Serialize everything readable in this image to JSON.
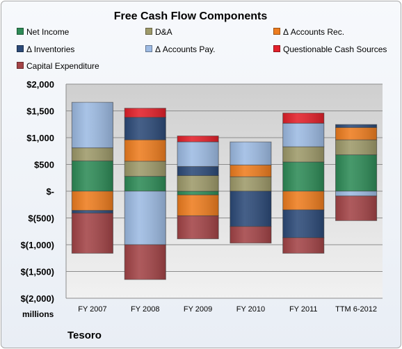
{
  "chart_data": {
    "type": "bar",
    "stacked": true,
    "title": "Free Cash Flow Components",
    "units_label": "millions",
    "categories": [
      "FY 2007",
      "FY 2008",
      "FY 2009",
      "FY 2010",
      "FY 2011",
      "TTM 6-2012"
    ],
    "y_ticks": [
      "$2,000",
      "$1,500",
      "$1,000",
      "$500",
      "$-",
      "$(500)",
      "$(1,000)",
      "$(1,500)",
      "$(2,000)"
    ],
    "ylim": [
      -2000,
      2000
    ],
    "grid": true,
    "legend_position": "top",
    "series": [
      {
        "name": "Net Income",
        "color": "#2e8b57",
        "values": [
          566,
          278,
          -70,
          0,
          546,
          680
        ]
      },
      {
        "name": "D&A",
        "color": "#9e9a6a",
        "values": [
          244,
          282,
          292,
          270,
          284,
          280
        ]
      },
      {
        "name": "Δ Accounts Rec.",
        "color": "#ee7d1f",
        "values": [
          -360,
          400,
          -390,
          220,
          -350,
          230
        ]
      },
      {
        "name": "Δ Inventories",
        "color": "#2c4a78",
        "values": [
          -50,
          420,
          170,
          -660,
          -520,
          55
        ]
      },
      {
        "name": "Δ Accounts Pay.",
        "color": "#9dbbe3",
        "values": [
          850,
          -1000,
          460,
          430,
          440,
          -90
        ]
      },
      {
        "name": "Questionable Cash Sources",
        "color": "#e3202a",
        "values": [
          0,
          170,
          110,
          0,
          190,
          0
        ]
      },
      {
        "name": "Capital Expenditure",
        "color": "#a34447",
        "values": [
          -750,
          -650,
          -430,
          -310,
          -290,
          -460
        ]
      }
    ]
  },
  "footer": {
    "company": "Tesoro"
  }
}
